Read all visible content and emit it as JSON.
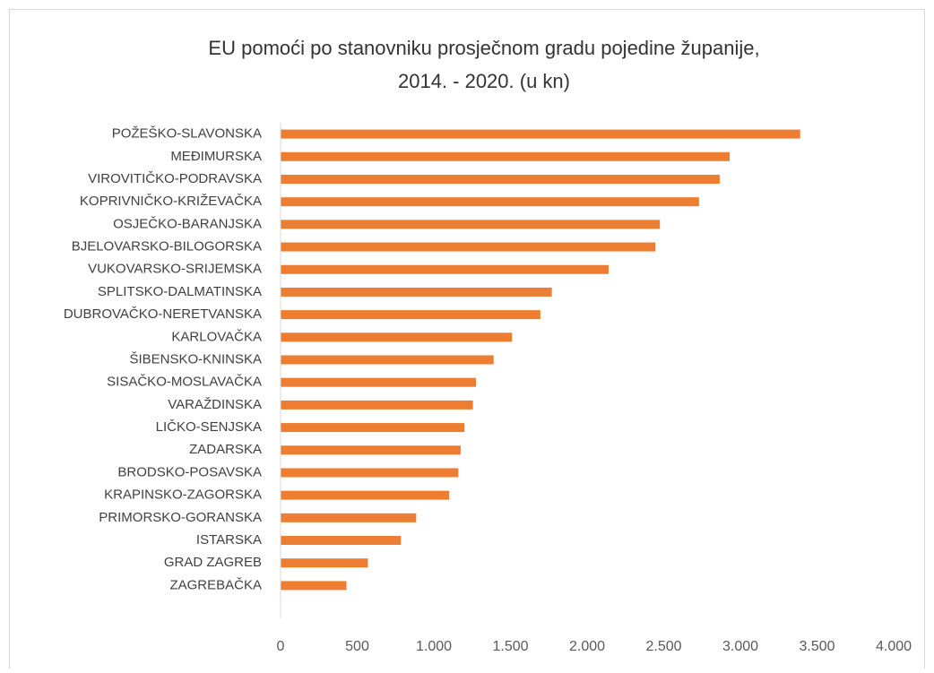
{
  "chart_data": {
    "type": "barh",
    "title": [
      "EU pomoći po stanovniku prosječnom gradu pojedine županije,",
      "2014. - 2020. (u kn)"
    ],
    "categories": [
      "POŽEŠKO-SLAVONSKA",
      "MEĐIMURSKA",
      "VIROVITIČKO-PODRAVSKA",
      "KOPRIVNIČKO-KRIŽEVAČKA",
      "OSJEČKO-BARANJSKA",
      "BJELOVARSKO-BILOGORSKA",
      "VUKOVARSKO-SRIJEMSKA",
      "SPLITSKO-DALMATINSKA",
      "DUBROVAČKO-NERETVANSKA",
      "KARLOVAČKA",
      "ŠIBENSKO-KNINSKA",
      "SISAČKO-MOSLAVAČKA",
      "VARAŽDINSKA",
      "LIČKO-SENJSKA",
      "ZADARSKA",
      "BRODSKO-POSAVSKA",
      "KRAPINSKO-ZAGORSKA",
      "PRIMORSKO-GORANSKA",
      "ISTARSKA",
      "GRAD ZAGREB",
      "ZAGREBAČKA"
    ],
    "values": [
      3390,
      2930,
      2865,
      2730,
      2475,
      2445,
      2140,
      1770,
      1695,
      1510,
      1390,
      1275,
      1255,
      1200,
      1175,
      1160,
      1100,
      885,
      785,
      570,
      430
    ],
    "color": "#ed7d31",
    "xlim": [
      0,
      4000
    ],
    "xticks": [
      0,
      500,
      {
        "value": 1000,
        "label": "1.000"
      },
      {
        "value": 1500,
        "label": "1.500"
      },
      {
        "value": 2000,
        "label": "2.000"
      },
      {
        "value": 2500,
        "label": "2.500"
      },
      {
        "value": 3000,
        "label": "3.000"
      },
      {
        "value": 3500,
        "label": "3.500"
      },
      {
        "value": 4000,
        "label": "4.000"
      }
    ],
    "grid": false
  }
}
